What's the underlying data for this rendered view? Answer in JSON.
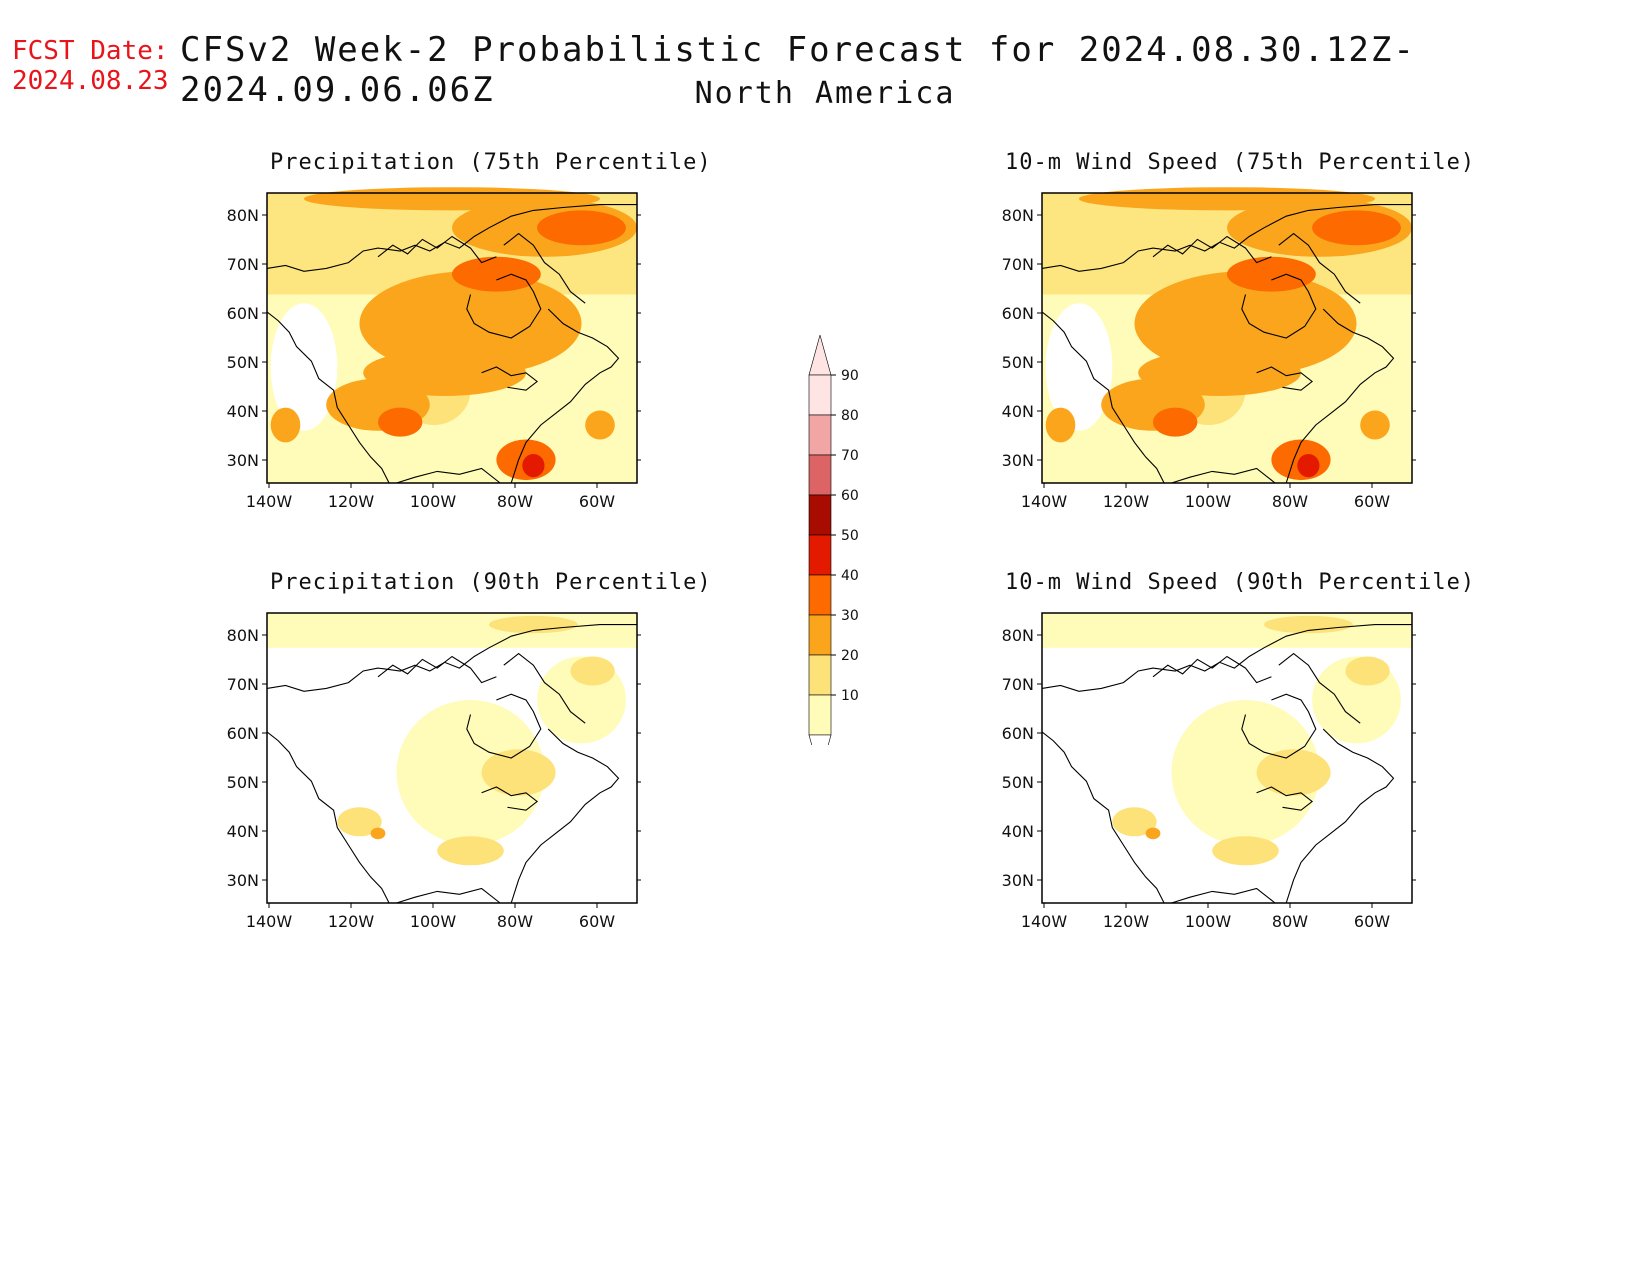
{
  "header": {
    "fcst_label": "FCST Date:",
    "fcst_date": "2024.08.23",
    "title": "CFSv2 Week-2 Probabilistic Forecast for 2024.08.30.12Z-2024.09.06.06Z",
    "subtitle": "North America"
  },
  "panels": [
    {
      "title": "Precipitation (75th Percentile)",
      "intensity": "high"
    },
    {
      "title": "10-m Wind Speed (75th Percentile)",
      "intensity": "high"
    },
    {
      "title": "Precipitation (90th Percentile)",
      "intensity": "low"
    },
    {
      "title": "10-m Wind Speed (90th Percentile)",
      "intensity": "low"
    }
  ],
  "axes": {
    "lat_labels": [
      "80N",
      "70N",
      "60N",
      "50N",
      "40N",
      "30N"
    ],
    "lon_labels": [
      "140W",
      "120W",
      "100W",
      "80W",
      "60W"
    ]
  },
  "colorbar": {
    "levels": [
      "10",
      "20",
      "30",
      "40",
      "50",
      "60",
      "70",
      "80",
      "90"
    ],
    "colors": [
      "#fffbb8",
      "#fde27a",
      "#fba51c",
      "#fc6a00",
      "#e41a00",
      "#a80c00",
      "#dc6464",
      "#f2a5a5",
      "#ffe4e4"
    ]
  }
}
